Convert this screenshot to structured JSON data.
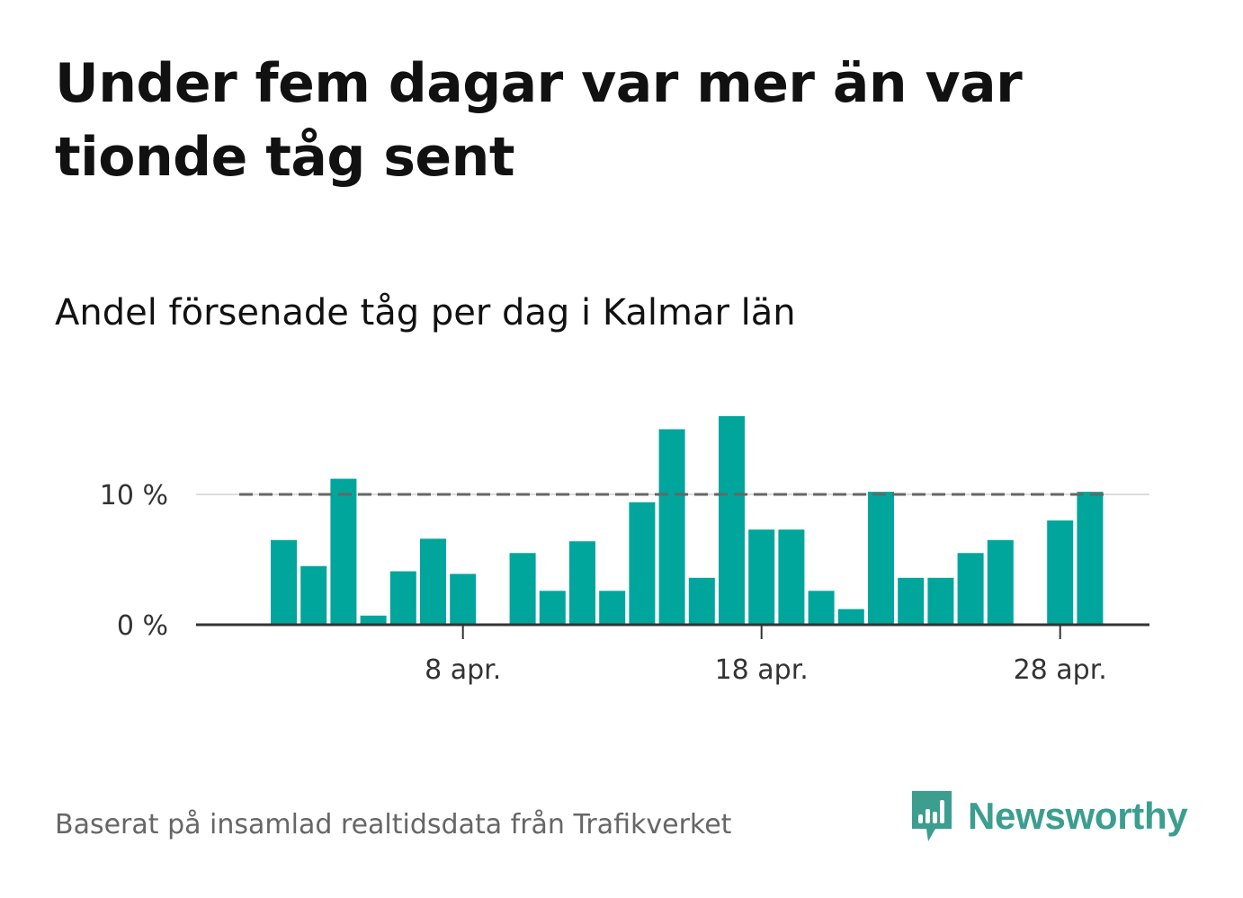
{
  "header": {
    "title": "Under fem dagar var mer än var tionde tåg sent",
    "subtitle": "Andel försenade tåg per dag i Kalmar län"
  },
  "footer": {
    "source": "Baserat på insamlad realtidsdata från Trafikverket",
    "brand_name": "Newsworthy"
  },
  "colors": {
    "bar": "#00a59b",
    "threshold_line": "#666666",
    "brand": "#3b9e8f",
    "grid": "#dddddd",
    "axis": "#333333"
  },
  "icons": {
    "brand_logo": "newsworthy-chart-bubble-icon"
  },
  "chart_data": {
    "type": "bar",
    "x": [
      "2 apr.",
      "3 apr.",
      "4 apr.",
      "5 apr.",
      "6 apr.",
      "7 apr.",
      "8 apr.",
      "9 apr.",
      "10 apr.",
      "11 apr.",
      "12 apr.",
      "13 apr.",
      "14 apr.",
      "15 apr.",
      "16 apr.",
      "17 apr.",
      "18 apr.",
      "19 apr.",
      "20 apr.",
      "21 apr.",
      "22 apr.",
      "23 apr.",
      "24 apr.",
      "25 apr.",
      "26 apr.",
      "27 apr.",
      "28 apr.",
      "29 apr."
    ],
    "values": [
      6.5,
      4.5,
      11.2,
      0.7,
      4.1,
      6.6,
      3.9,
      0,
      5.5,
      2.6,
      6.4,
      2.6,
      9.4,
      15.0,
      3.6,
      16.0,
      7.3,
      7.3,
      2.6,
      1.2,
      10.2,
      3.6,
      3.6,
      5.5,
      6.5,
      0,
      8.0,
      10.2
    ],
    "unit": "%",
    "y_ticks": [
      {
        "value": 0,
        "label": "0 %"
      },
      {
        "value": 10,
        "label": "10 %"
      }
    ],
    "x_ticks": [
      {
        "value": "8 apr.",
        "label": "8 apr."
      },
      {
        "value": "18 apr.",
        "label": "18 apr."
      },
      {
        "value": "28 apr.",
        "label": "28 apr."
      }
    ],
    "threshold": 10,
    "ylim": [
      0,
      16
    ],
    "x_range": [
      "31 mar.",
      "31 apr."
    ],
    "grid": true,
    "title": "Andel försenade tåg per dag i Kalmar län",
    "xlabel": "",
    "ylabel": ""
  }
}
